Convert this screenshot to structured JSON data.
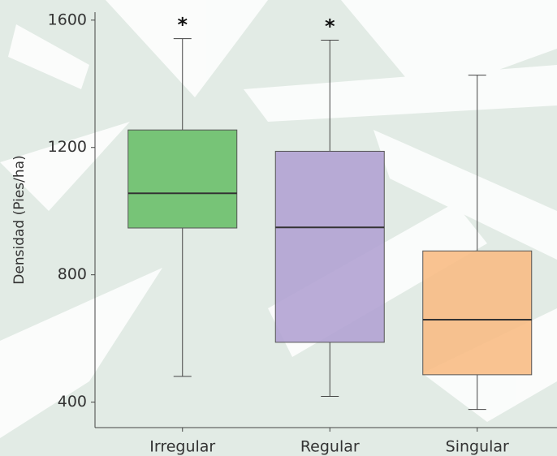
{
  "chart_data": {
    "type": "box",
    "y_label": "Densidad (Pies/ha)",
    "categories": [
      "Irregular",
      "Regular",
      "Singular"
    ],
    "whisker_low": [
      481,
      418,
      377
    ],
    "q1": [
      947,
      588,
      486
    ],
    "median": [
      1056,
      949,
      659
    ],
    "q3": [
      1255,
      1188,
      875
    ],
    "whisker_high": [
      1542,
      1537,
      1427
    ],
    "box_labels": [
      "*",
      "*",
      null
    ],
    "colors": [
      "#6cc06a",
      "#b3a3d3",
      "#f8bd85"
    ],
    "ylim": [
      320,
      1625
    ],
    "yticks": [
      400,
      800,
      1200,
      1600
    ]
  }
}
